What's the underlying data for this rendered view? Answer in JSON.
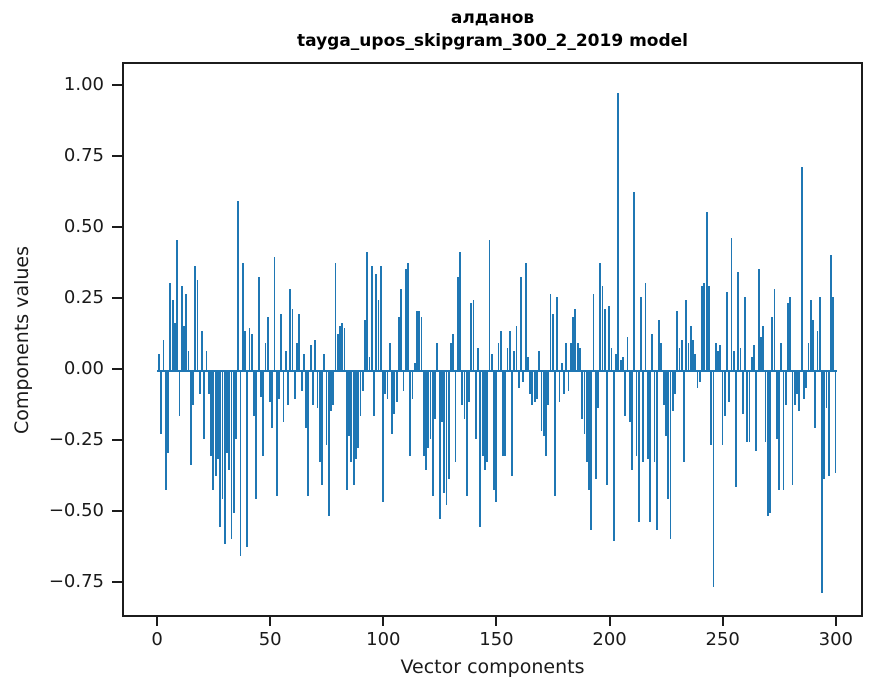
{
  "figure": {
    "background": "#ffffff",
    "spine_color": "#1c1c1c"
  },
  "chart_data": {
    "type": "bar",
    "title_line1": "алданов",
    "title_line2": "tayga_upos_skipgram_300_2_2019 model",
    "xlabel": "Vector components",
    "ylabel": "Components values",
    "bar_color": "#1f77b4",
    "legend": "none",
    "grid": false,
    "x_start": 0,
    "n_components": 300,
    "xlim": [
      -15.5,
      312.0
    ],
    "ylim": [
      -0.873,
      1.081
    ],
    "xticks": [
      0,
      50,
      100,
      150,
      200,
      250,
      300
    ],
    "ytick_values": [
      1.0,
      0.75,
      0.5,
      0.25,
      0.0,
      -0.25,
      -0.5,
      -0.75
    ],
    "ytick_labels": [
      "1.00",
      "0.75",
      "0.50",
      "0.25",
      "0.00",
      "−0.25",
      "−0.50",
      "−0.75"
    ],
    "values": [
      0.06,
      -0.22,
      0.11,
      -0.42,
      -0.29,
      0.31,
      0.25,
      0.17,
      0.46,
      -0.16,
      0.3,
      0.16,
      0.27,
      0.07,
      -0.33,
      -0.12,
      0.37,
      0.32,
      -0.08,
      0.14,
      -0.24,
      0.07,
      -0.08,
      -0.3,
      -0.42,
      -0.37,
      -0.31,
      -0.55,
      -0.45,
      -0.61,
      -0.29,
      -0.35,
      -0.59,
      -0.5,
      -0.24,
      0.6,
      -0.65,
      0.38,
      0.14,
      -0.62,
      0.15,
      0.13,
      -0.16,
      -0.45,
      0.33,
      -0.09,
      -0.3,
      0.1,
      0.19,
      -0.11,
      -0.2,
      0.4,
      -0.44,
      -0.1,
      0.2,
      -0.18,
      0.07,
      -0.12,
      0.29,
      0.22,
      -0.1,
      0.1,
      0.2,
      -0.07,
      0.06,
      -0.2,
      -0.44,
      0.09,
      -0.12,
      0.11,
      -0.13,
      -0.32,
      -0.4,
      0.06,
      -0.26,
      -0.51,
      -0.14,
      -0.12,
      0.38,
      0.13,
      0.16,
      0.17,
      0.15,
      -0.42,
      -0.23,
      -0.32,
      -0.4,
      -0.31,
      -0.27,
      -0.16,
      -0.07,
      0.18,
      0.42,
      0.05,
      0.37,
      -0.16,
      0.34,
      0.25,
      0.37,
      -0.46,
      -0.08,
      -0.1,
      0.1,
      -0.22,
      -0.15,
      -0.11,
      0.19,
      0.29,
      -0.07,
      0.36,
      0.38,
      -0.3,
      -0.1,
      0.03,
      0.21,
      0.21,
      0.19,
      -0.3,
      -0.35,
      -0.27,
      -0.24,
      -0.44,
      -0.17,
      0.1,
      -0.52,
      -0.18,
      -0.43,
      -0.47,
      -0.38,
      0.1,
      0.13,
      -0.32,
      0.33,
      0.42,
      -0.12,
      -0.17,
      -0.44,
      -0.11,
      0.24,
      0.25,
      -0.24,
      0.08,
      -0.55,
      -0.3,
      -0.35,
      -0.32,
      0.46,
      0.06,
      -0.42,
      -0.46,
      0.1,
      0.14,
      -0.3,
      -0.3,
      0.08,
      0.14,
      -0.37,
      0.07,
      0.16,
      -0.06,
      0.33,
      -0.04,
      0.38,
      0.05,
      -0.08,
      -0.12,
      -0.11,
      -0.1,
      0.07,
      -0.21,
      -0.23,
      -0.3,
      -0.12,
      0.27,
      0.2,
      -0.44,
      0.26,
      -0.11,
      0.03,
      -0.08,
      0.1,
      -0.07,
      0.1,
      0.19,
      0.22,
      0.1,
      0.08,
      -0.17,
      -0.22,
      -0.32,
      -0.42,
      -0.56,
      0.27,
      -0.38,
      -0.13,
      0.38,
      0.3,
      0.22,
      -0.4,
      0.23,
      0.08,
      -0.6,
      0.06,
      0.98,
      0.04,
      0.05,
      -0.16,
      0.12,
      -0.18,
      -0.35,
      0.63,
      -0.3,
      -0.53,
      0.26,
      -0.32,
      0.31,
      -0.31,
      -0.53,
      0.13,
      -0.32,
      -0.56,
      0.18,
      0.1,
      -0.12,
      -0.23,
      -0.45,
      -0.59,
      -0.14,
      -0.08,
      0.21,
      0.08,
      0.11,
      -0.32,
      0.25,
      0.1,
      0.16,
      0.11,
      0.06,
      -0.06,
      -0.04,
      0.3,
      0.31,
      0.56,
      0.3,
      -0.26,
      -0.76,
      0.1,
      0.07,
      0.09,
      -0.26,
      -0.16,
      0.28,
      -0.11,
      0.47,
      0.07,
      -0.41,
      0.35,
      0.08,
      -0.15,
      0.26,
      -0.25,
      -0.25,
      0.05,
      0.09,
      -0.28,
      0.36,
      0.12,
      0.16,
      -0.25,
      -0.51,
      -0.5,
      0.19,
      0.29,
      -0.24,
      -0.42,
      0.1,
      -0.42,
      -0.12,
      0.24,
      0.26,
      -0.4,
      -0.12,
      -0.08,
      -0.14,
      0.72,
      -0.1,
      -0.06,
      0.1,
      0.25,
      0.18,
      -0.2,
      0.14,
      0.26,
      -0.78,
      -0.38,
      -0.13,
      -0.37,
      0.41,
      0.26,
      -0.36
    ]
  }
}
